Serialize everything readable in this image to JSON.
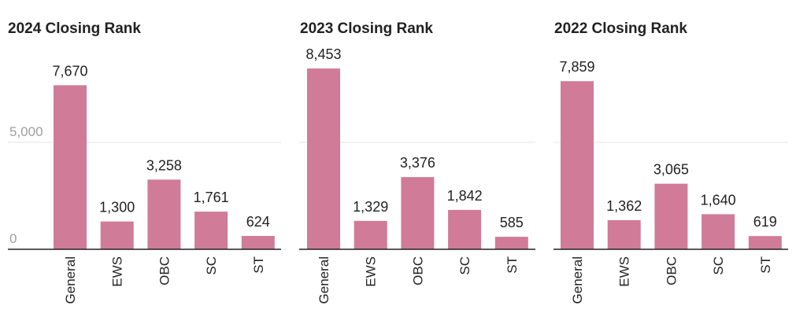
{
  "colors": {
    "bar": "#d07b98"
  },
  "chart_data": [
    {
      "type": "bar",
      "title": "2024 Closing Rank",
      "categories": [
        "General",
        "EWS",
        "OBC",
        "SC",
        "ST"
      ],
      "values": [
        7670,
        1300,
        3258,
        1761,
        624
      ],
      "value_labels": [
        "7,670",
        "1,300",
        "3,258",
        "1,761",
        "624"
      ],
      "ylim": [
        0,
        9200
      ],
      "y_ticks": [
        {
          "value": 0,
          "label": "0"
        },
        {
          "value": 5000,
          "label": "5,000"
        }
      ],
      "xlabel": "",
      "ylabel": "",
      "grid": true,
      "legend": "none"
    },
    {
      "type": "bar",
      "title": "2023 Closing Rank",
      "categories": [
        "General",
        "EWS",
        "OBC",
        "SC",
        "ST"
      ],
      "values": [
        8453,
        1329,
        3376,
        1842,
        585
      ],
      "value_labels": [
        "8,453",
        "1,329",
        "3,376",
        "1,842",
        "585"
      ],
      "ylim": [
        0,
        9200
      ],
      "y_ticks": [],
      "xlabel": "",
      "ylabel": "",
      "grid": true,
      "legend": "none"
    },
    {
      "type": "bar",
      "title": "2022 Closing Rank",
      "categories": [
        "General",
        "EWS",
        "OBC",
        "SC",
        "ST"
      ],
      "values": [
        7859,
        1362,
        3065,
        1640,
        619
      ],
      "value_labels": [
        "7,859",
        "1,362",
        "3,065",
        "1,640",
        "619"
      ],
      "ylim": [
        0,
        9200
      ],
      "y_ticks": [],
      "xlabel": "",
      "ylabel": "",
      "grid": true,
      "legend": "none"
    }
  ]
}
